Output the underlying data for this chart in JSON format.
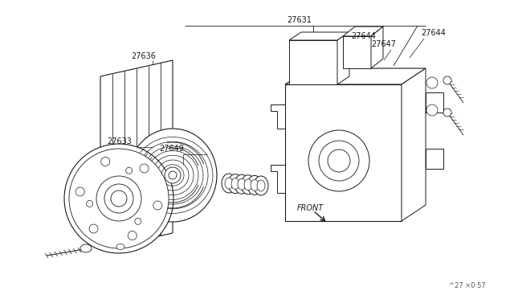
{
  "bg": "white",
  "lc": "#1a1a1a",
  "lc2": "#555555",
  "fs_label": 7,
  "footer": "^27 ×0·57",
  "footer2": "^27 *0 57"
}
